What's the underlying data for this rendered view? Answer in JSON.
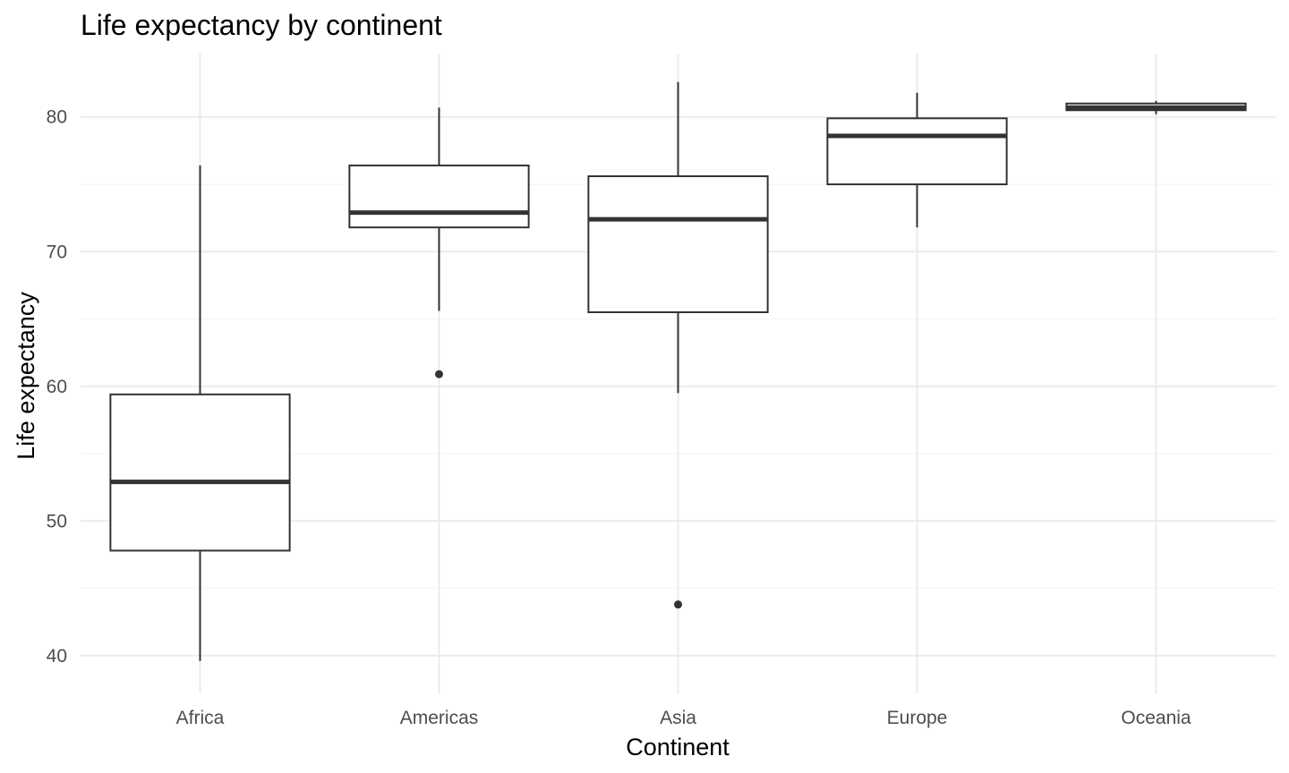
{
  "chart_data": {
    "type": "boxplot",
    "title": "Life expectancy by continent",
    "xlabel": "Continent",
    "ylabel": "Life expectancy",
    "categories": [
      "Africa",
      "Americas",
      "Asia",
      "Europe",
      "Oceania"
    ],
    "ylim": [
      37.2,
      84.7
    ],
    "yticks": [
      40,
      50,
      60,
      70,
      80
    ],
    "grid": true,
    "legend": "none",
    "boxes": [
      {
        "category": "Africa",
        "whisker_low": 39.6,
        "q1": 47.8,
        "median": 52.9,
        "q3": 59.4,
        "whisker_high": 76.4,
        "outliers": []
      },
      {
        "category": "Americas",
        "whisker_low": 65.6,
        "q1": 71.8,
        "median": 72.9,
        "q3": 76.4,
        "whisker_high": 80.7,
        "outliers": [
          60.9
        ]
      },
      {
        "category": "Asia",
        "whisker_low": 59.5,
        "q1": 65.5,
        "median": 72.4,
        "q3": 75.6,
        "whisker_high": 82.6,
        "outliers": [
          43.8
        ]
      },
      {
        "category": "Europe",
        "whisker_low": 71.8,
        "q1": 75.0,
        "median": 78.6,
        "q3": 79.9,
        "whisker_high": 81.8,
        "outliers": []
      },
      {
        "category": "Oceania",
        "whisker_low": 80.2,
        "q1": 80.5,
        "median": 80.7,
        "q3": 81.0,
        "whisker_high": 81.2,
        "outliers": []
      }
    ],
    "colors": {
      "box_stroke": "#333333",
      "grid_major": "#ebebeb",
      "grid_minor": "#f4f4f4",
      "tick_text": "#4d4d4d"
    }
  }
}
